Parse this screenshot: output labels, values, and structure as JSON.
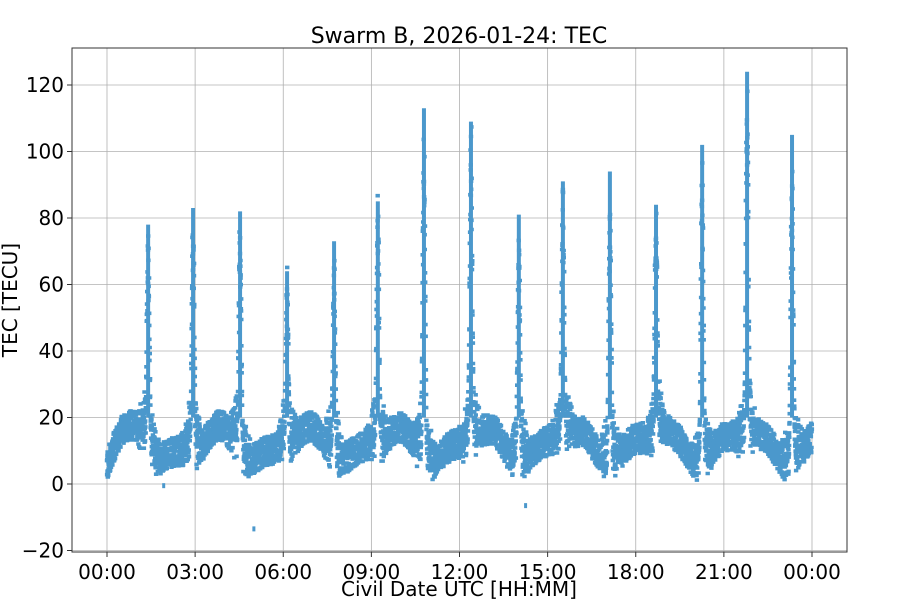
{
  "chart_data": {
    "type": "scatter",
    "title": "Swarm B, 2026-01-24: TEC",
    "xlabel": "Civil Date UTC [HH:MM]",
    "ylabel": "TEC [TECU]",
    "x_ticks": [
      "00:00",
      "03:00",
      "06:00",
      "09:00",
      "12:00",
      "15:00",
      "18:00",
      "21:00",
      "00:00"
    ],
    "y_ticks": [
      -20,
      0,
      20,
      40,
      60,
      80,
      100,
      120
    ],
    "xlim_hours": [
      -1.2,
      25.2
    ],
    "ylim": [
      -21,
      131
    ],
    "grid": true,
    "legend": null,
    "marker_color": "#4b98cc",
    "series": [
      {
        "name": "TEC",
        "background_range_tecu": [
          2,
          25
        ],
        "peaks": [
          {
            "time": "01:24",
            "hour": 1.4,
            "tec": 78
          },
          {
            "time": "02:56",
            "hour": 2.93,
            "tec": 83
          },
          {
            "time": "04:32",
            "hour": 4.53,
            "tec": 82
          },
          {
            "time": "06:08",
            "hour": 6.13,
            "tec": 64
          },
          {
            "time": "07:44",
            "hour": 7.73,
            "tec": 73
          },
          {
            "time": "09:13",
            "hour": 9.22,
            "tec": 85
          },
          {
            "time": "10:47",
            "hour": 10.79,
            "tec": 113
          },
          {
            "time": "12:23",
            "hour": 12.39,
            "tec": 109
          },
          {
            "time": "14:01",
            "hour": 14.02,
            "tec": 81
          },
          {
            "time": "15:31",
            "hour": 15.52,
            "tec": 91
          },
          {
            "time": "17:07",
            "hour": 17.12,
            "tec": 94
          },
          {
            "time": "18:41",
            "hour": 18.69,
            "tec": 84
          },
          {
            "time": "20:16",
            "hour": 20.26,
            "tec": 102
          },
          {
            "time": "21:47",
            "hour": 21.79,
            "tec": 124
          },
          {
            "time": "23:19",
            "hour": 23.32,
            "tec": 105
          }
        ],
        "outliers": [
          {
            "hour": 1.93,
            "tec": -0.5
          },
          {
            "hour": 5.0,
            "tec": -13.5
          },
          {
            "hour": 14.25,
            "tec": -6.5
          }
        ]
      }
    ]
  }
}
